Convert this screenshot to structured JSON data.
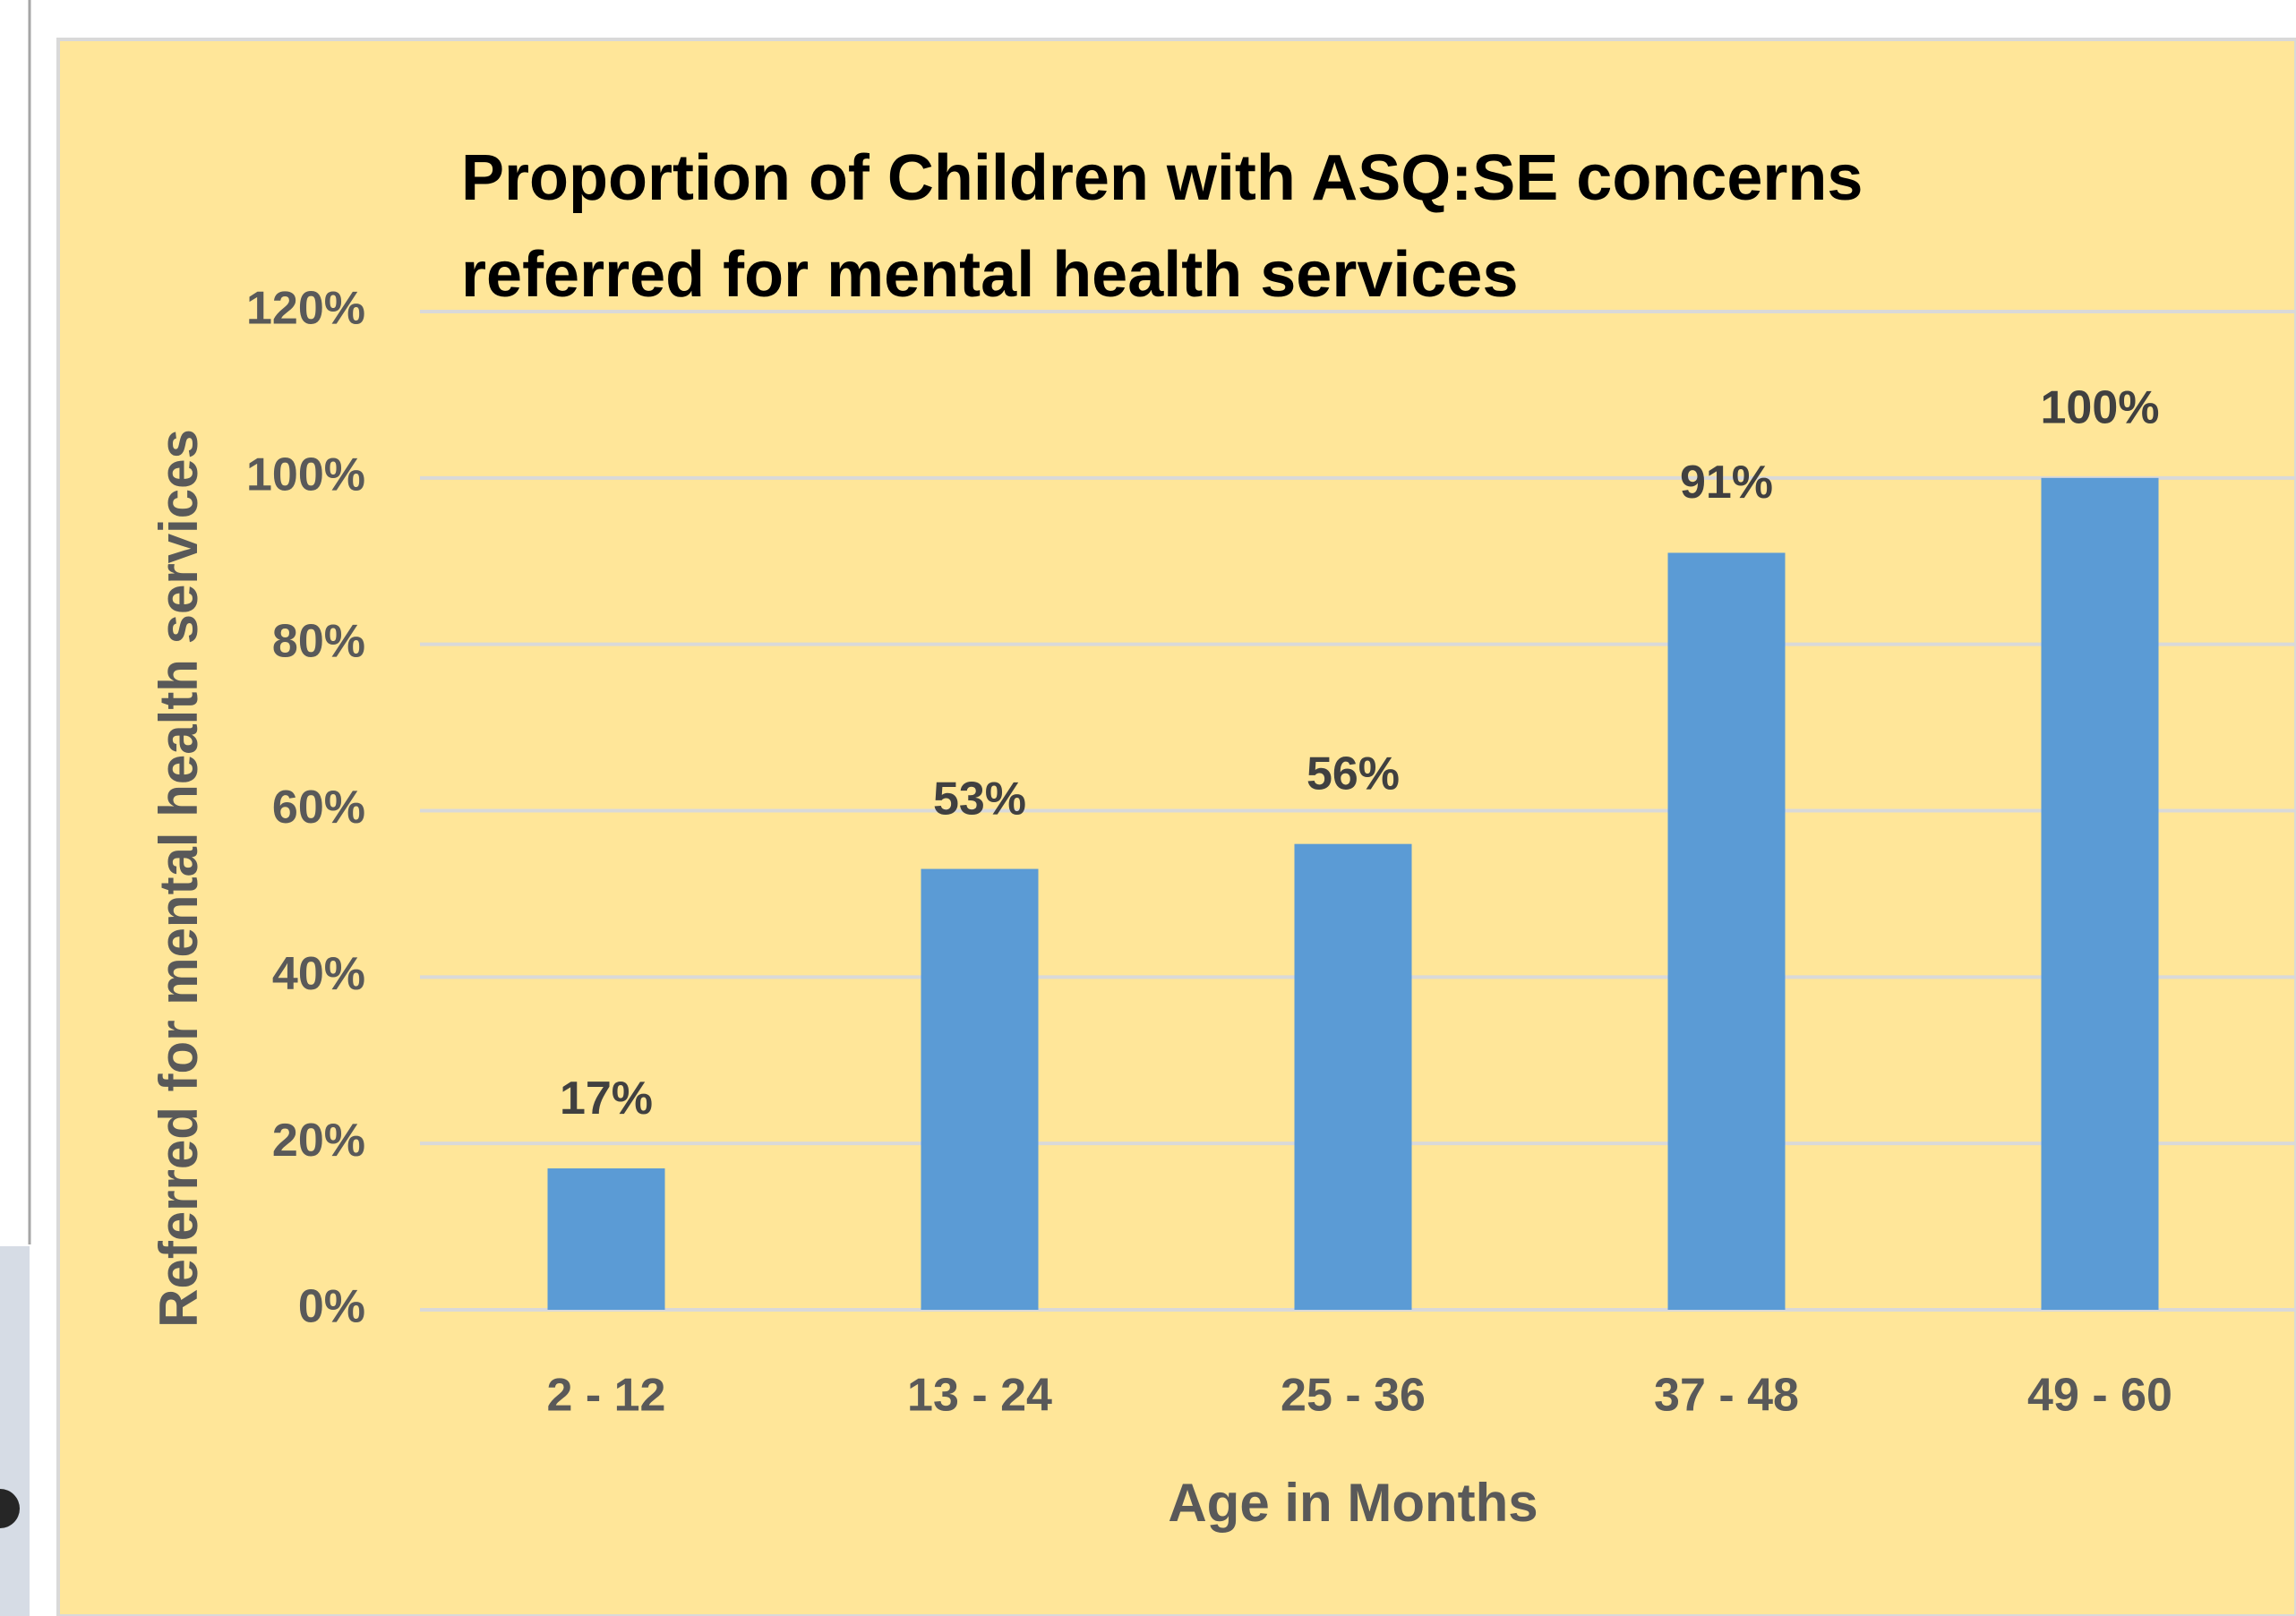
{
  "chart_data": {
    "type": "bar",
    "title": [
      "Proportion of Children with ASQ:SE concerns",
      "referred for mental health services"
    ],
    "x_label": "Age in Months",
    "y_label": "Referred for mental health services",
    "categories": [
      "2 - 12",
      "13 - 24",
      "25 - 36",
      "37 - 48",
      "49 - 60"
    ],
    "values": [
      17,
      53,
      56,
      91,
      100
    ],
    "value_labels": [
      "17%",
      "53%",
      "56%",
      "91%",
      "100%"
    ],
    "color": "#5b9bd5",
    "ylim": [
      0,
      120
    ],
    "yticks": [
      {
        "value": 0,
        "label": "0%"
      },
      {
        "value": 20,
        "label": "20%"
      },
      {
        "value": 40,
        "label": "40%"
      },
      {
        "value": 60,
        "label": "60%"
      },
      {
        "value": 80,
        "label": "80%"
      },
      {
        "value": 100,
        "label": "100%"
      },
      {
        "value": 120,
        "label": "120%"
      }
    ],
    "grid": true
  }
}
